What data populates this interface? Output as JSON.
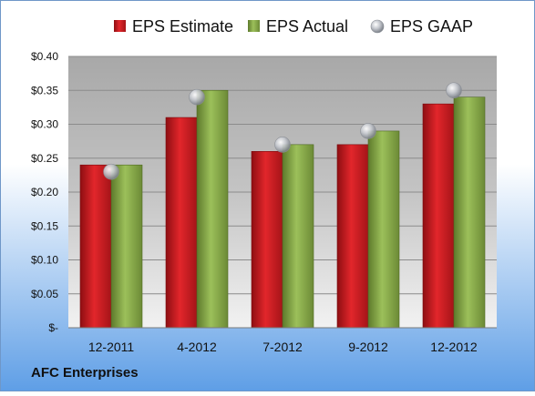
{
  "chart_data": {
    "type": "bar",
    "categories": [
      "12-2011",
      "4-2012",
      "7-2012",
      "9-2012",
      "12-2012"
    ],
    "series": [
      {
        "name": "EPS Estimate",
        "kind": "bar",
        "color": "#c8191e",
        "values": [
          0.24,
          0.31,
          0.26,
          0.27,
          0.33
        ]
      },
      {
        "name": "EPS Actual",
        "kind": "bar",
        "color": "#86a848",
        "values": [
          0.24,
          0.35,
          0.27,
          0.29,
          0.34
        ]
      },
      {
        "name": "EPS GAAP",
        "kind": "marker",
        "color": "#b8bcc4",
        "values": [
          0.23,
          0.34,
          0.27,
          0.29,
          0.35
        ]
      }
    ],
    "y_ticks": [
      {
        "value": 0.4,
        "label": "$0.40"
      },
      {
        "value": 0.35,
        "label": "$0.35"
      },
      {
        "value": 0.3,
        "label": "$0.30"
      },
      {
        "value": 0.25,
        "label": "$0.25"
      },
      {
        "value": 0.2,
        "label": "$0.20"
      },
      {
        "value": 0.15,
        "label": "$0.15"
      },
      {
        "value": 0.1,
        "label": "$0.10"
      },
      {
        "value": 0.05,
        "label": "$0.05"
      },
      {
        "value": 0.0,
        "label": "$-"
      }
    ],
    "ylim": [
      0,
      0.4
    ],
    "grid": true,
    "legend_position": "top",
    "company": "AFC Enterprises"
  }
}
